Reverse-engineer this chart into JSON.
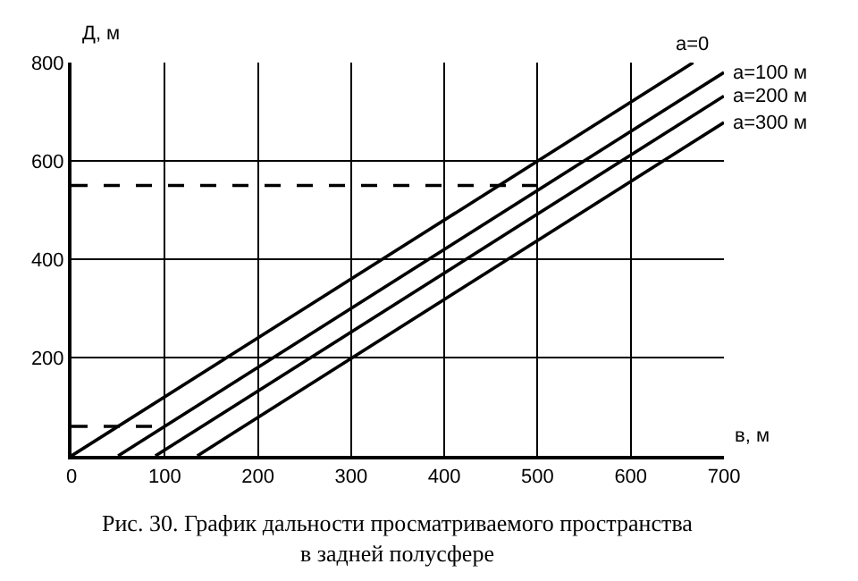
{
  "chart_data": {
    "type": "line",
    "title": "Рис. 30. График дальности просматриваемого пространства\nв задней полусфере",
    "xlabel": "в, м",
    "ylabel": "Д, м",
    "xlim": [
      0,
      700
    ],
    "xticks": [
      0,
      100,
      200,
      300,
      400,
      500,
      600,
      700
    ],
    "ylim": [
      0,
      800
    ],
    "yticks": [
      {
        "value": 0,
        "label": null
      },
      200,
      400,
      600,
      800
    ],
    "grid": true,
    "legend": false,
    "marker": "none",
    "series": [
      {
        "name": "а=0",
        "color": "#000000",
        "x": [
          0,
          667
        ],
        "values": [
          0,
          800
        ]
      },
      {
        "name": "а=100 м",
        "color": "#000000",
        "x": [
          50,
          700
        ],
        "values": [
          0,
          780
        ]
      },
      {
        "name": "а=200 м",
        "color": "#000000",
        "x": [
          90,
          700
        ],
        "values": [
          0,
          732
        ]
      },
      {
        "name": "а=300 м",
        "color": "#000000",
        "x": [
          135,
          700
        ],
        "values": [
          0,
          678
        ]
      },
      {
        "color": "#000000",
        "line_style": "dashed",
        "x": [
          0,
          500
        ],
        "values": [
          550,
          550
        ]
      },
      {
        "color": "#000000",
        "line_style": "dashed",
        "x": [
          0,
          100
        ],
        "values": [
          60,
          60
        ]
      }
    ]
  }
}
